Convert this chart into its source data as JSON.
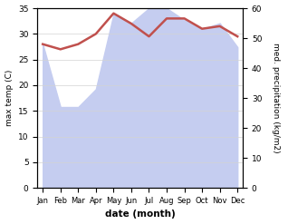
{
  "months": [
    "Jan",
    "Feb",
    "Mar",
    "Apr",
    "May",
    "Jun",
    "Jul",
    "Aug",
    "Sep",
    "Oct",
    "Nov",
    "Dec"
  ],
  "x": [
    0,
    1,
    2,
    3,
    4,
    5,
    6,
    7,
    8,
    9,
    10,
    11
  ],
  "temperature": [
    28,
    27,
    28,
    30,
    34,
    32,
    29.5,
    33,
    33,
    31,
    31.5,
    29.5
  ],
  "precipitation": [
    48,
    27,
    27,
    33,
    58,
    55,
    60,
    60,
    56,
    53,
    55,
    47
  ],
  "temp_ylim": [
    0,
    35
  ],
  "precip_ylim": [
    0,
    60
  ],
  "temp_color": "#c0504d",
  "precip_fill_color": "#c5cdf0",
  "xlabel": "date (month)",
  "ylabel_left": "max temp (C)",
  "ylabel_right": "med. precipitation (kg/m2)",
  "bg_color": "#ffffff"
}
